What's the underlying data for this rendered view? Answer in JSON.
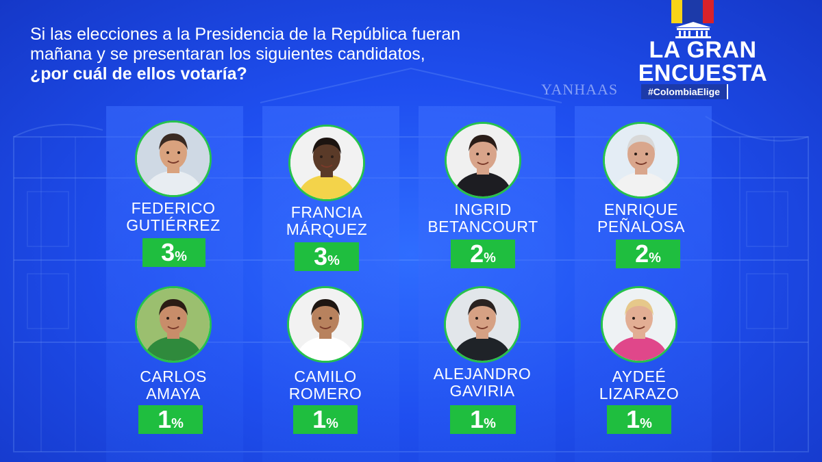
{
  "question": {
    "line1": "Si las elecciones a la Presidencia de la República fueran",
    "line2": "mañana y se presentaran los siguientes candidatos,",
    "bold": "¿por cuál de ellos votaría?"
  },
  "watermark": "YANHAAS",
  "logo": {
    "title_line1": "LA GRAN",
    "title_line2": "ENCUESTA",
    "hashtag": "#ColombiaElige"
  },
  "colors": {
    "background": "#1f4ff0",
    "badge": "#1fbe3f",
    "ring": "#27c24c"
  },
  "candidates": [
    {
      "first": "FEDERICO",
      "last": "GUTIÉRREZ",
      "value": "3",
      "unit": "%",
      "icon": "candidate-portrait-icon",
      "bg": "#cfd9e4",
      "skin": "#d9a27e",
      "hair": "#3a2a22",
      "shirt": "#e8edf2"
    },
    {
      "first": "FRANCIA",
      "last": "MÁRQUEZ",
      "value": "3",
      "unit": "%",
      "icon": "candidate-portrait-icon",
      "bg": "#f2f2f2",
      "skin": "#5a3a28",
      "hair": "#1c1410",
      "shirt": "#f3d34a"
    },
    {
      "first": "INGRID",
      "last": "BETANCOURT",
      "value": "2",
      "unit": "%",
      "icon": "candidate-portrait-icon",
      "bg": "#f0f0f0",
      "skin": "#d8a48a",
      "hair": "#2a1d18",
      "shirt": "#1d1d22"
    },
    {
      "first": "ENRIQUE",
      "last": "PEÑALOSA",
      "value": "2",
      "unit": "%",
      "icon": "candidate-portrait-icon",
      "bg": "#e4edf5",
      "skin": "#d9a68c",
      "hair": "#d8d8d8",
      "shirt": "#f2f2f2"
    },
    {
      "first": "CARLOS",
      "last": "AMAYA",
      "value": "1",
      "unit": "%",
      "icon": "candidate-portrait-icon",
      "bg": "#9bbf6f",
      "skin": "#c88d6a",
      "hair": "#2a1c14",
      "shirt": "#2f8a3c"
    },
    {
      "first": "CAMILO",
      "last": "ROMERO",
      "value": "1",
      "unit": "%",
      "icon": "candidate-portrait-icon",
      "bg": "#f2f2f2",
      "skin": "#b8825e",
      "hair": "#1e1612",
      "shirt": "#ffffff"
    },
    {
      "first": "ALEJANDRO",
      "last": "GAVIRIA",
      "value": "1",
      "unit": "%",
      "icon": "candidate-portrait-icon",
      "bg": "#e2e6ea",
      "skin": "#d6a184",
      "hair": "#2a2220",
      "shirt": "#1f2328"
    },
    {
      "first": "AYDEÉ",
      "last": "LIZARAZO",
      "value": "1",
      "unit": "%",
      "icon": "candidate-portrait-icon",
      "bg": "#eef2f4",
      "skin": "#e2ae94",
      "hair": "#e6c88a",
      "shirt": "#e0478a"
    }
  ]
}
